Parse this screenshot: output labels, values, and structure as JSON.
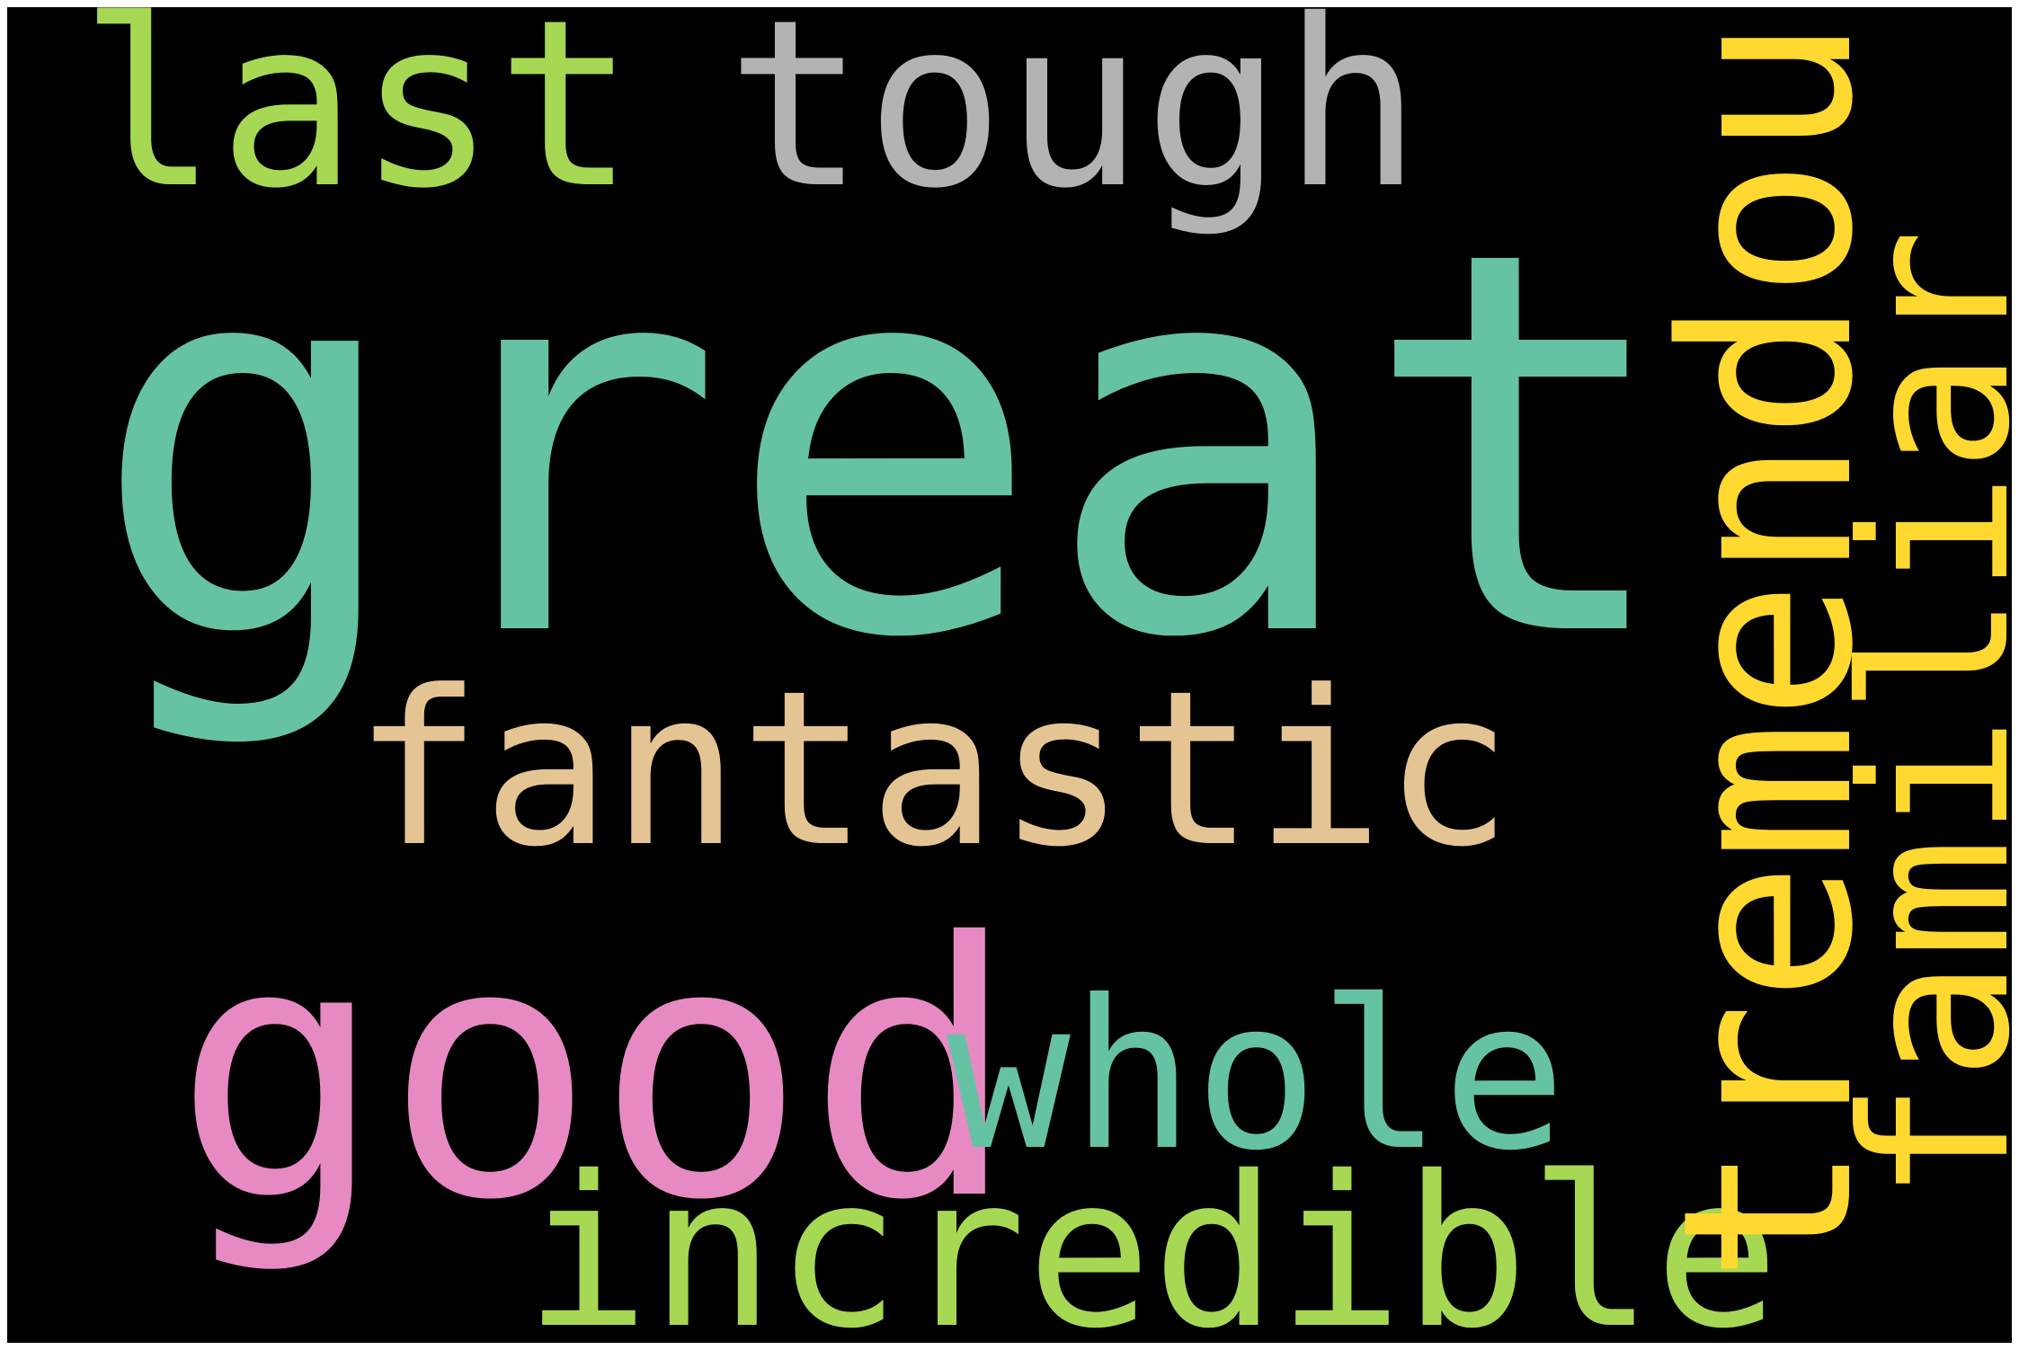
{
  "background_color": "#000000",
  "words": {
    "great": {
      "text": "great",
      "color": "#66c2a5",
      "orientation": "horizontal"
    },
    "last": {
      "text": "last",
      "color": "#a6d854",
      "orientation": "horizontal"
    },
    "tough": {
      "text": "tough",
      "color": "#b3b3b3",
      "orientation": "horizontal"
    },
    "fantastic": {
      "text": "fantastic",
      "color": "#e5c494",
      "orientation": "horizontal"
    },
    "good": {
      "text": "good",
      "color": "#e78ac3",
      "orientation": "horizontal"
    },
    "whole": {
      "text": "whole",
      "color": "#66c2a5",
      "orientation": "horizontal"
    },
    "incredible": {
      "text": "incredible",
      "color": "#a6d854",
      "orientation": "horizontal"
    },
    "tremendous": {
      "text": "tremendous",
      "color": "#ffd92f",
      "orientation": "vertical"
    },
    "familiar": {
      "text": "familiar",
      "color": "#ffd92f",
      "orientation": "vertical"
    }
  }
}
